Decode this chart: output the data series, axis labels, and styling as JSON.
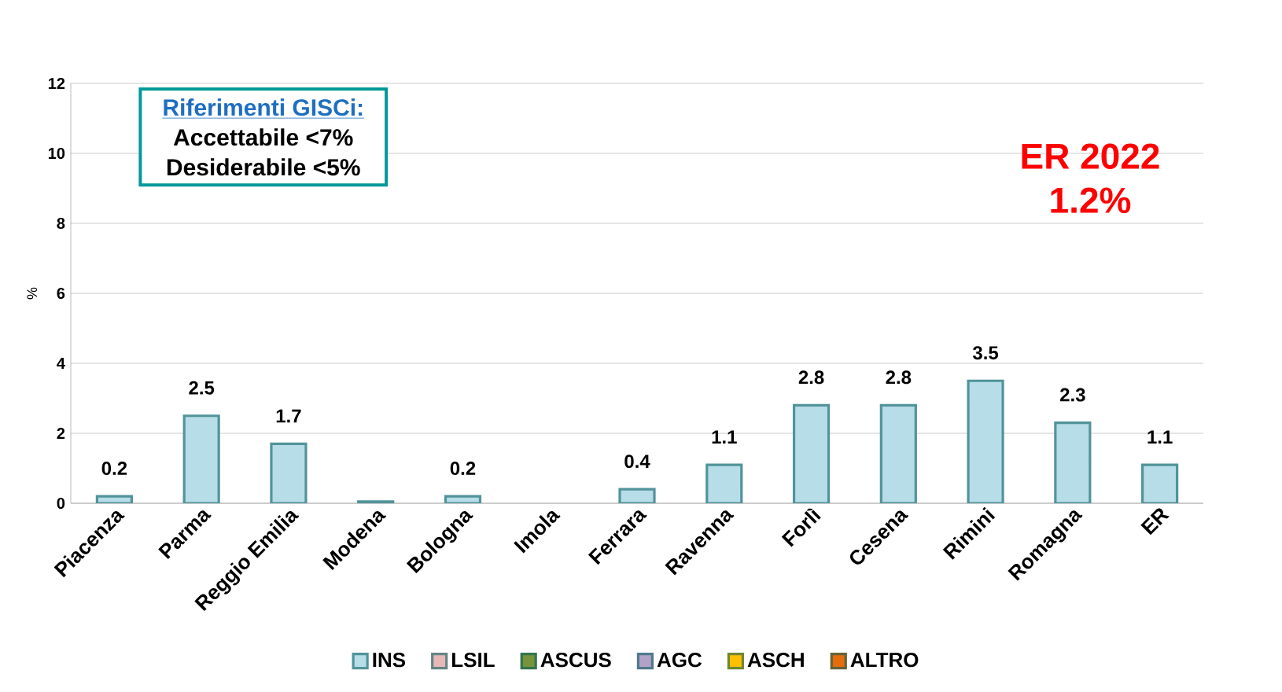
{
  "chart_data": {
    "type": "bar",
    "ylabel": "%",
    "categories": [
      "Piacenza",
      "Parma",
      "Reggio Emilia",
      "Modena",
      "Bologna",
      "Imola",
      "Ferrara",
      "Ravenna",
      "Forlì",
      "Cesena",
      "Rimini",
      "Romagna",
      "ER"
    ],
    "series": [
      {
        "name": "INS",
        "color": "#b7dde8",
        "values": [
          0.2,
          2.5,
          1.7,
          0.05,
          0.2,
          null,
          0.4,
          1.1,
          2.8,
          2.8,
          3.5,
          2.3,
          1.1
        ],
        "value_labels": [
          "0.2",
          "2.5",
          "1.7",
          null,
          "0.2",
          null,
          "0.4",
          "1.1",
          "2.8",
          "2.8",
          "3.5",
          "2.3",
          "1.1"
        ]
      },
      {
        "name": "LSIL",
        "color": "#e6b9b8",
        "values": [
          null,
          null,
          null,
          null,
          null,
          null,
          null,
          null,
          null,
          null,
          null,
          null,
          null
        ]
      },
      {
        "name": "ASCUS",
        "color": "#77933c",
        "values": [
          null,
          null,
          null,
          null,
          null,
          null,
          null,
          null,
          null,
          null,
          null,
          null,
          null
        ]
      },
      {
        "name": "AGC",
        "color": "#b3a2c7",
        "values": [
          null,
          null,
          null,
          null,
          null,
          null,
          null,
          null,
          null,
          null,
          null,
          null,
          null
        ]
      },
      {
        "name": "ASCH",
        "color": "#ffc000",
        "values": [
          null,
          null,
          null,
          null,
          null,
          null,
          null,
          null,
          null,
          null,
          null,
          null,
          null
        ]
      },
      {
        "name": "ALTRO",
        "color": "#e46c0a",
        "values": [
          null,
          null,
          null,
          null,
          null,
          null,
          null,
          null,
          null,
          null,
          null,
          null,
          null
        ]
      }
    ],
    "ylim": [
      0,
      12
    ],
    "yticks": [
      0,
      2,
      4,
      6,
      8,
      10,
      12
    ],
    "grid": "y",
    "legend": "bottom",
    "annotations": [
      "Riferimenti GISCi:",
      "Accettabile <7%",
      "Desiderabile <5%",
      "ER  2022",
      "1.2%"
    ]
  }
}
